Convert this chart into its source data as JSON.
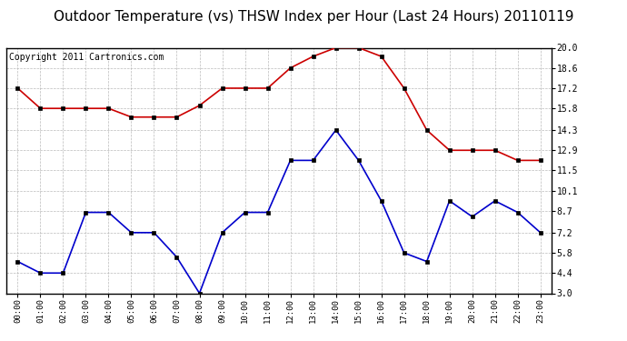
{
  "title": "Outdoor Temperature (vs) THSW Index per Hour (Last 24 Hours) 20110119",
  "copyright": "Copyright 2011 Cartronics.com",
  "hours": [
    "00:00",
    "01:00",
    "02:00",
    "03:00",
    "04:00",
    "05:00",
    "06:00",
    "07:00",
    "08:00",
    "09:00",
    "10:00",
    "11:00",
    "12:00",
    "13:00",
    "14:00",
    "15:00",
    "16:00",
    "17:00",
    "18:00",
    "19:00",
    "20:00",
    "21:00",
    "22:00",
    "23:00"
  ],
  "red_data": [
    17.2,
    15.8,
    15.8,
    15.8,
    15.8,
    15.2,
    15.2,
    15.2,
    16.0,
    17.2,
    17.2,
    17.2,
    18.6,
    19.4,
    20.0,
    20.0,
    19.4,
    17.2,
    14.3,
    12.9,
    12.9,
    12.9,
    12.2,
    12.2
  ],
  "blue_data": [
    5.2,
    4.4,
    4.4,
    8.6,
    8.6,
    7.2,
    7.2,
    5.5,
    3.0,
    7.2,
    8.6,
    8.6,
    12.2,
    12.2,
    14.3,
    12.2,
    9.4,
    5.8,
    5.2,
    9.4,
    8.3,
    9.4,
    8.6,
    7.2
  ],
  "ylim": [
    3.0,
    20.0
  ],
  "yticks": [
    3.0,
    4.4,
    5.8,
    7.2,
    8.7,
    10.1,
    11.5,
    12.9,
    14.3,
    15.8,
    17.2,
    18.6,
    20.0
  ],
  "red_color": "#cc0000",
  "blue_color": "#0000cc",
  "marker_color": "#000000",
  "grid_color": "#aaaaaa",
  "bg_color": "#ffffff",
  "title_fontsize": 11,
  "copyright_fontsize": 7
}
